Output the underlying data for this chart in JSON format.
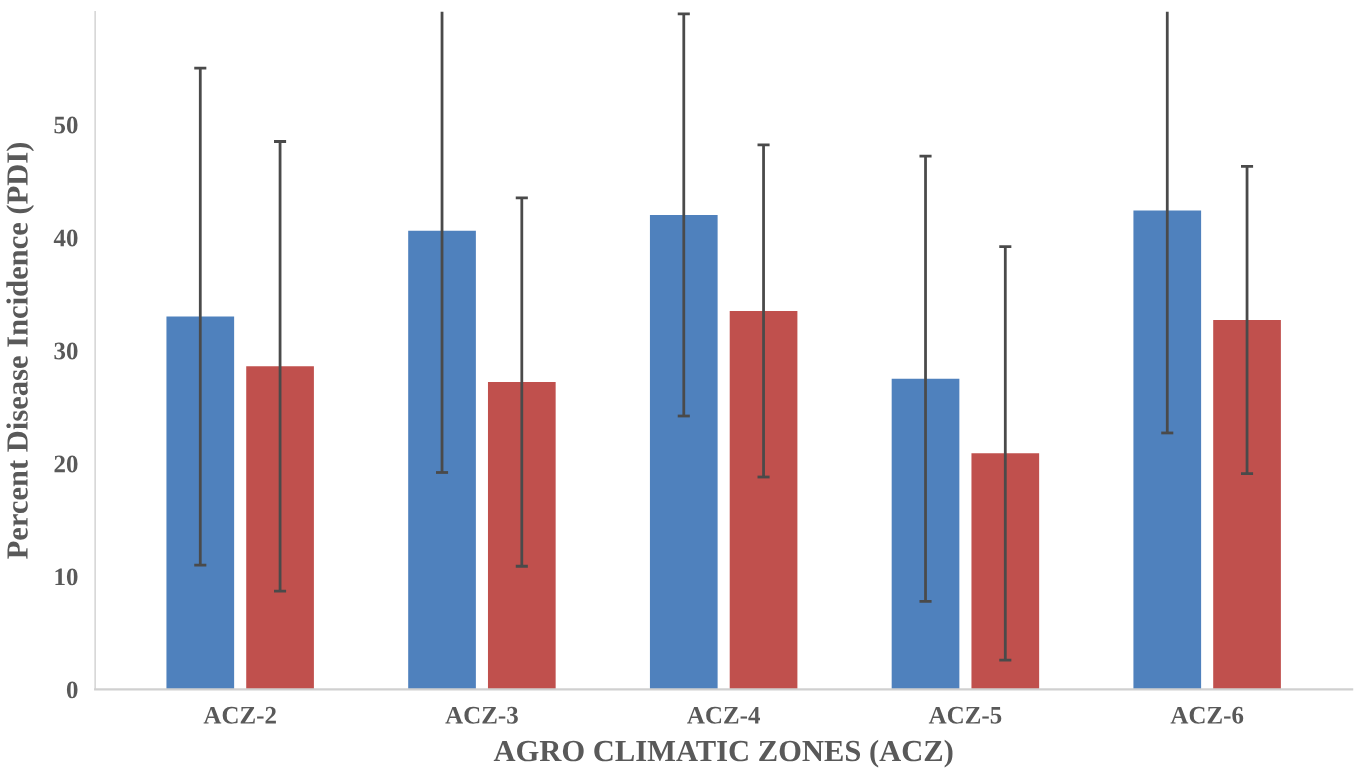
{
  "chart_data": {
    "type": "bar",
    "xlabel": "AGRO CLIMATIC ZONES (ACZ)",
    "ylabel": "Percent Disease Incidence (PDI)",
    "categories": [
      "ACZ-2",
      "ACZ-3",
      "ACZ-4",
      "ACZ-5",
      "ACZ-6"
    ],
    "series": [
      {
        "color": "#4f81bd",
        "values": [
          33.0,
          40.6,
          42.0,
          27.5,
          42.4
        ],
        "errors": [
          22.0,
          [
            19.2,
            60
          ],
          17.8,
          19.7,
          [
            22.7,
            60
          ]
        ]
      },
      {
        "color": "#c0504d",
        "values": [
          28.6,
          27.2,
          33.5,
          20.9,
          32.7
        ],
        "errors": [
          19.9,
          16.3,
          14.7,
          18.3,
          13.6
        ]
      }
    ],
    "ylim": [
      0,
      60
    ],
    "yticks": [
      0,
      10,
      20,
      30,
      40,
      50
    ],
    "grid": false,
    "legend": false
  }
}
